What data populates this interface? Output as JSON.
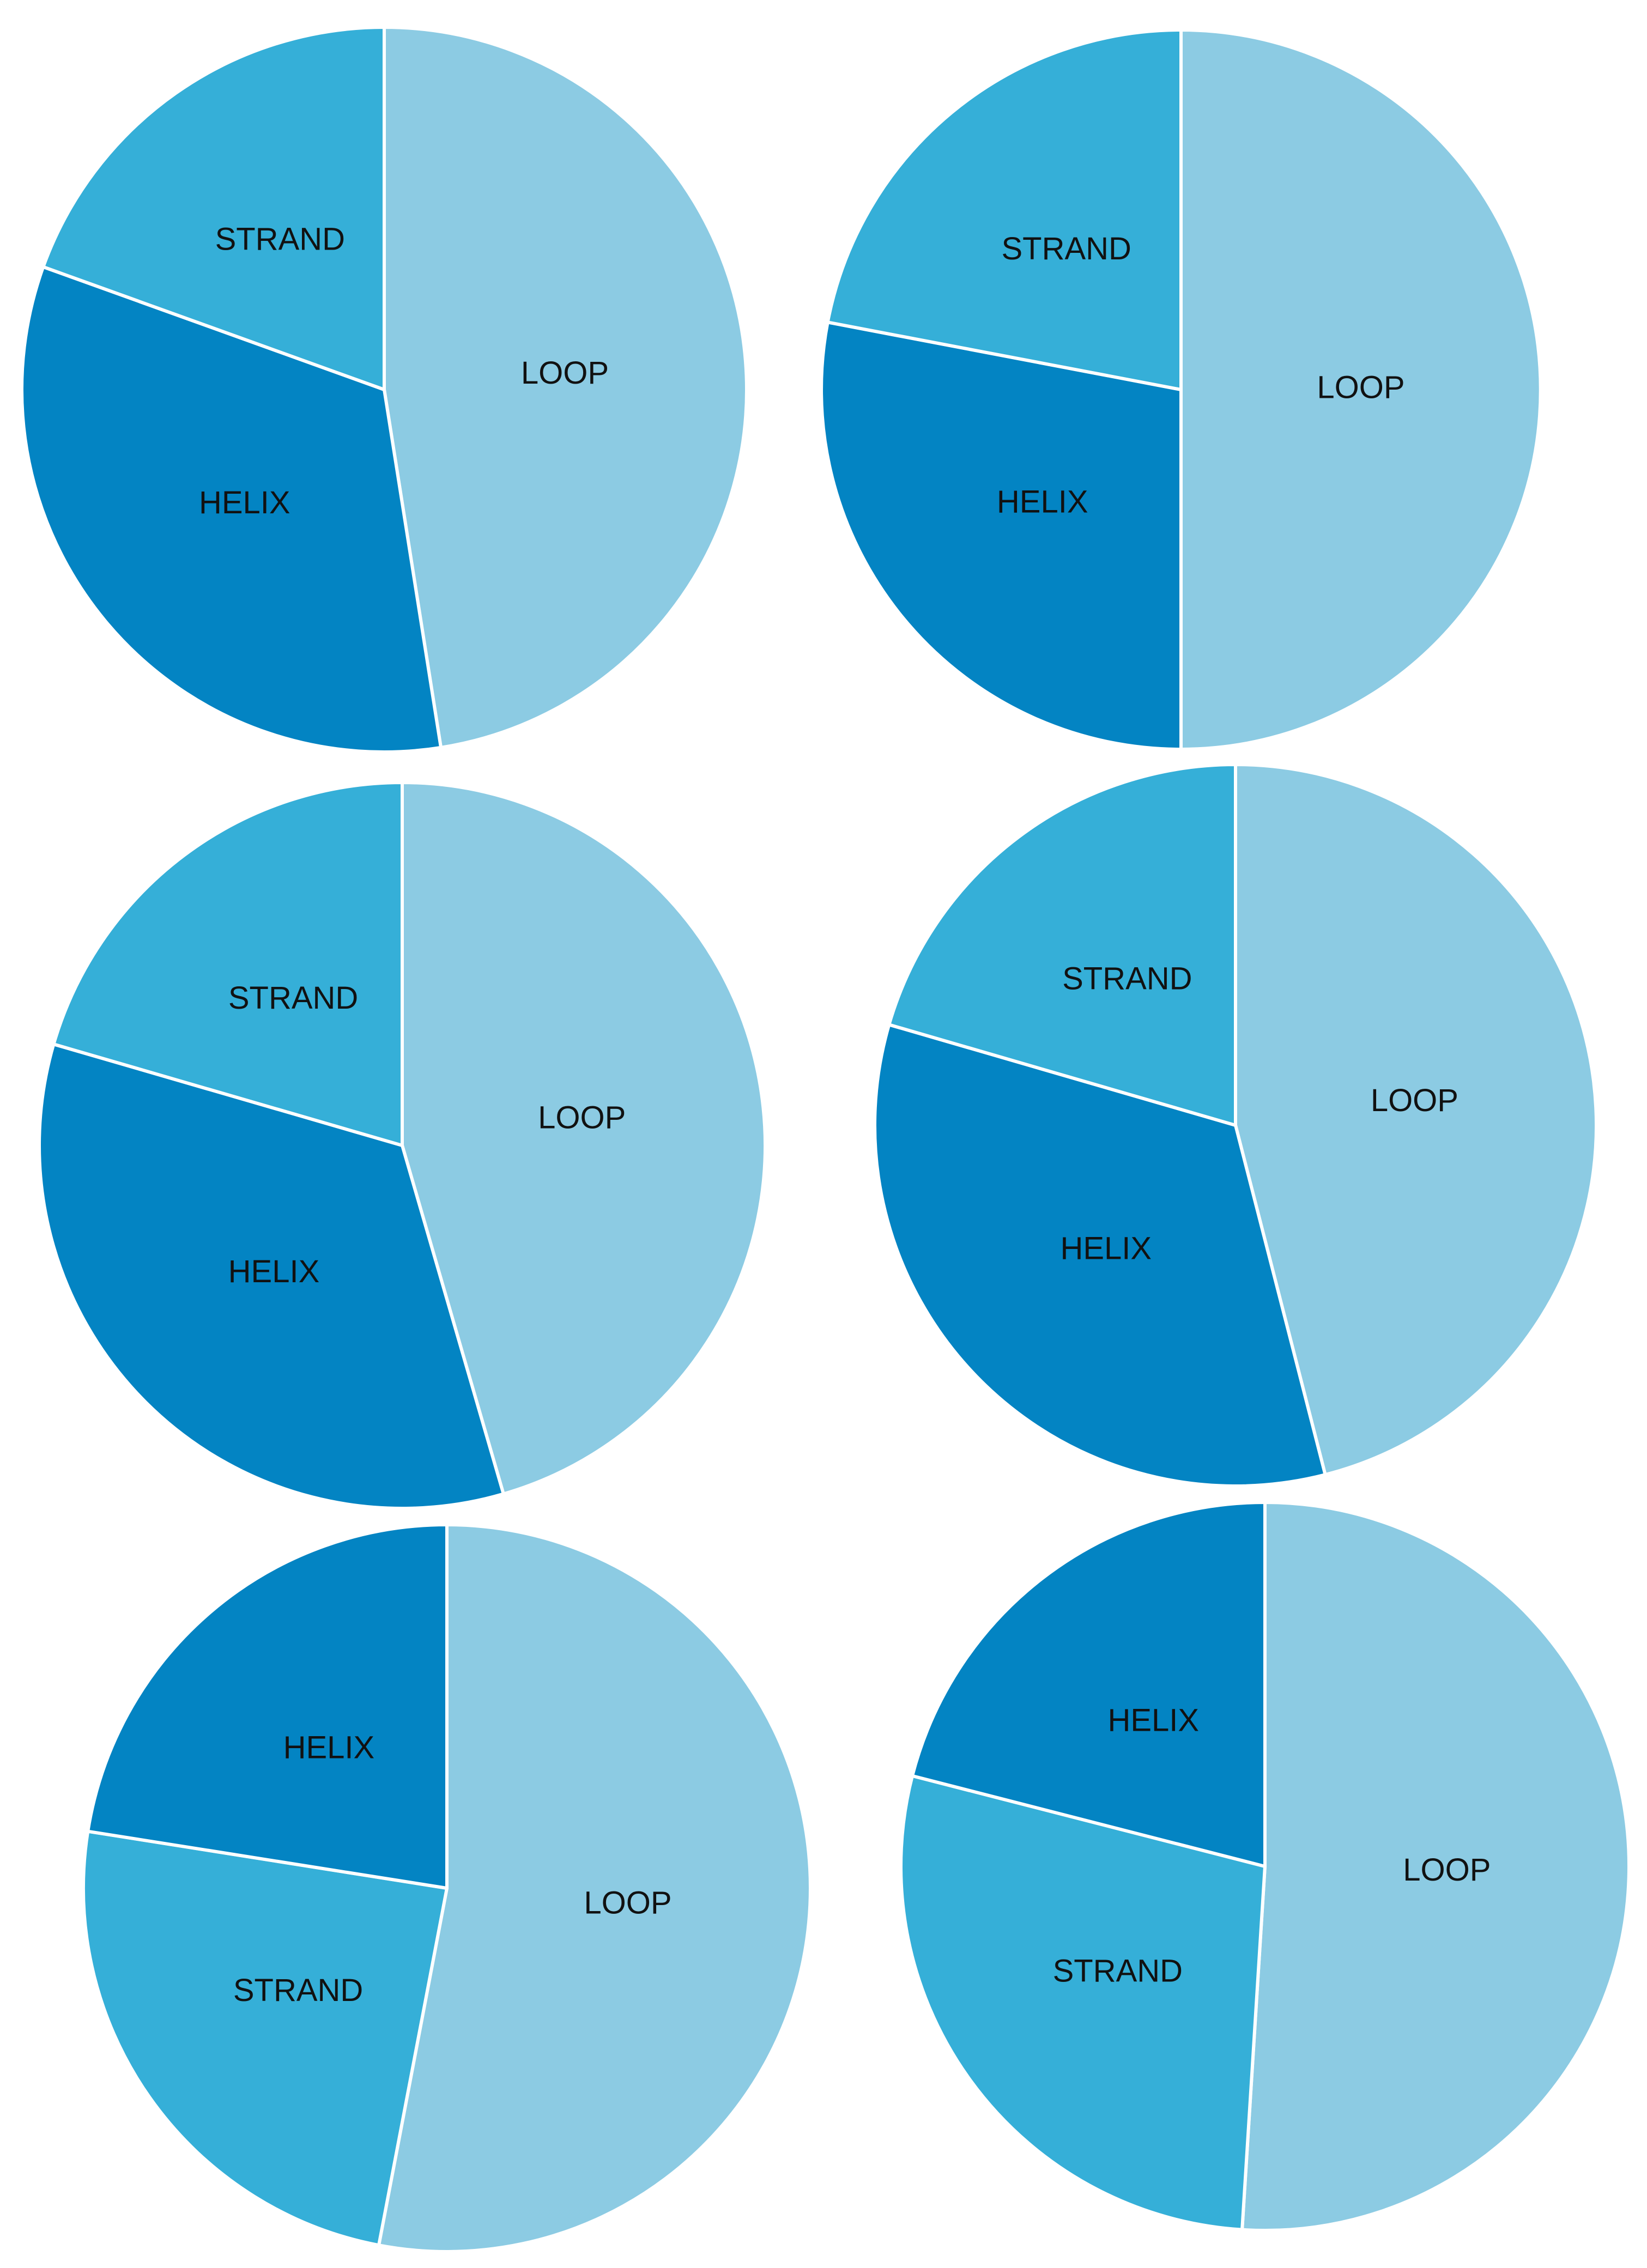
{
  "chart_data": [
    {
      "type": "pie",
      "slices": [
        {
          "label": "LOOP",
          "value": 47.5,
          "color": "#8ccbe3"
        },
        {
          "label": "HELIX",
          "value": 33.0,
          "color": "#0384c3"
        },
        {
          "label": "STRAND",
          "value": 19.5,
          "color": "#35afd8"
        }
      ]
    },
    {
      "type": "pie",
      "slices": [
        {
          "label": "LOOP",
          "value": 50.0,
          "color": "#8ccbe3"
        },
        {
          "label": "HELIX",
          "value": 28.0,
          "color": "#0384c3"
        },
        {
          "label": "STRAND",
          "value": 22.0,
          "color": "#35afd8"
        }
      ]
    },
    {
      "type": "pie",
      "slices": [
        {
          "label": "LOOP",
          "value": 45.5,
          "color": "#8ccbe3"
        },
        {
          "label": "HELIX",
          "value": 34.0,
          "color": "#0384c3"
        },
        {
          "label": "STRAND",
          "value": 20.5,
          "color": "#35afd8"
        }
      ]
    },
    {
      "type": "pie",
      "slices": [
        {
          "label": "LOOP",
          "value": 46.0,
          "color": "#8ccbe3"
        },
        {
          "label": "HELIX",
          "value": 33.5,
          "color": "#0384c3"
        },
        {
          "label": "STRAND",
          "value": 20.5,
          "color": "#35afd8"
        }
      ]
    },
    {
      "type": "pie",
      "slices": [
        {
          "label": "LOOP",
          "value": 53.0,
          "color": "#8ccbe3"
        },
        {
          "label": "STRAND",
          "value": 24.5,
          "color": "#35afd8"
        },
        {
          "label": "HELIX",
          "value": 22.5,
          "color": "#0384c3"
        }
      ]
    },
    {
      "type": "pie",
      "slices": [
        {
          "label": "LOOP",
          "value": 51.0,
          "color": "#8ccbe3"
        },
        {
          "label": "STRAND",
          "value": 28.0,
          "color": "#35afd8"
        },
        {
          "label": "HELIX",
          "value": 21.0,
          "color": "#0384c3"
        }
      ]
    }
  ]
}
